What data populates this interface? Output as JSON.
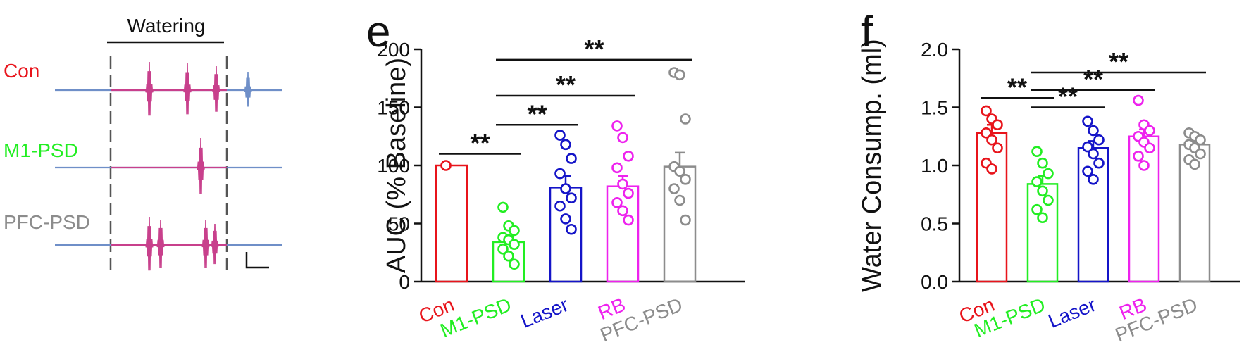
{
  "traces_panel": {
    "header": "Watering",
    "rows": [
      {
        "label": "Con",
        "color": "#e8141b"
      },
      {
        "label": "M1-PSD",
        "color": "#22ee22"
      },
      {
        "label": "PFC-PSD",
        "color": "#8c8c8c"
      }
    ],
    "trace_color": "#6f8fc8",
    "spike_color": "#c8408c"
  },
  "chart_data": [
    {
      "type": "bar",
      "panel_letter": "e",
      "ylabel": "AUC (% Baseline)",
      "ylim": [
        0,
        200
      ],
      "yticks": [
        "0",
        "50",
        "100",
        "150",
        "200"
      ],
      "categories": [
        "Con",
        "M1-PSD",
        "Laser",
        "RB",
        "PFC-PSD"
      ],
      "colors": [
        "#e8141b",
        "#22ee22",
        "#1414c8",
        "#ee22ee",
        "#8c8c8c"
      ],
      "values": [
        100,
        34,
        81,
        82,
        99
      ],
      "errors": [
        0,
        5,
        10,
        9,
        12
      ],
      "points": [
        [
          100
        ],
        [
          64,
          48,
          44,
          38,
          36,
          32,
          28,
          22,
          15
        ],
        [
          126,
          118,
          106,
          93,
          80,
          72,
          65,
          54,
          45
        ],
        [
          134,
          124,
          108,
          98,
          84,
          76,
          68,
          61,
          53
        ],
        [
          180,
          178,
          140,
          99,
          95,
          88,
          80,
          70,
          53
        ]
      ],
      "significance": [
        {
          "from": "Con",
          "to": "M1-PSD",
          "label": "**",
          "y": 110
        },
        {
          "from": "M1-PSD",
          "to": "Laser",
          "label": "**",
          "y": 135
        },
        {
          "from": "M1-PSD",
          "to": "RB",
          "label": "**",
          "y": 160
        },
        {
          "from": "M1-PSD",
          "to": "PFC-PSD",
          "label": "**",
          "y": 191
        }
      ]
    },
    {
      "type": "bar",
      "panel_letter": "f",
      "ylabel": "Water Consump. (ml)",
      "ylim": [
        0,
        2
      ],
      "yticks": [
        "0.0",
        "0.5",
        "1.0",
        "1.5",
        "2.0"
      ],
      "categories": [
        "Con",
        "M1-PSD",
        "Laser",
        "RB",
        "PFC-PSD"
      ],
      "colors": [
        "#e8141b",
        "#22ee22",
        "#1414c8",
        "#ee22ee",
        "#8c8c8c"
      ],
      "values": [
        1.28,
        0.84,
        1.15,
        1.25,
        1.18
      ],
      "errors": [
        0.07,
        0.07,
        0.06,
        0.06,
        0.04
      ],
      "points": [
        [
          1.47,
          1.4,
          1.35,
          1.28,
          1.22,
          1.15,
          1.02,
          0.97
        ],
        [
          1.12,
          1.02,
          0.93,
          0.86,
          0.78,
          0.7,
          0.62,
          0.55
        ],
        [
          1.38,
          1.3,
          1.22,
          1.16,
          1.1,
          1.02,
          0.95,
          0.88
        ],
        [
          1.56,
          1.35,
          1.3,
          1.25,
          1.2,
          1.15,
          1.08,
          1.0
        ],
        [
          1.28,
          1.25,
          1.22,
          1.18,
          1.15,
          1.1,
          1.05,
          1.01
        ]
      ],
      "significance": [
        {
          "from": "Con",
          "to": "M1-PSD",
          "label": "**",
          "y": 1.58
        },
        {
          "from": "M1-PSD",
          "to": "Laser",
          "label": "**",
          "y": 1.5
        },
        {
          "from": "M1-PSD",
          "to": "RB",
          "label": "**",
          "y": 1.65
        },
        {
          "from": "M1-PSD",
          "to": "PFC-PSD",
          "label": "**",
          "y": 1.8
        }
      ]
    }
  ]
}
